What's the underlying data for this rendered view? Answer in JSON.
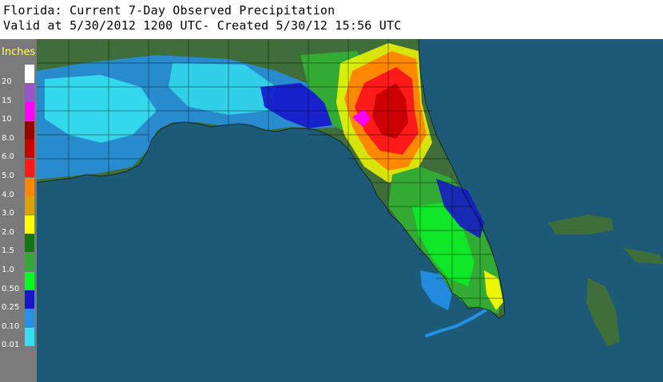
{
  "header": {
    "title": "Florida: Current 7-Day Observed Precipitation",
    "subtitle": "Valid at 5/30/2012 1200 UTC- Created 5/30/12 15:56 UTC"
  },
  "legend": {
    "title": "Inches",
    "items": [
      {
        "label": "20",
        "color": "#ffffff"
      },
      {
        "label": "15",
        "color": "#9955cc"
      },
      {
        "label": "10",
        "color": "#ff00ff"
      },
      {
        "label": "8.0",
        "color": "#990000"
      },
      {
        "label": "6.0",
        "color": "#cc0000"
      },
      {
        "label": "5.0",
        "color": "#ff1a1a"
      },
      {
        "label": "4.0",
        "color": "#ff8800"
      },
      {
        "label": "3.0",
        "color": "#d9a300"
      },
      {
        "label": "2.0",
        "color": "#ffff00"
      },
      {
        "label": "1.5",
        "color": "#117711"
      },
      {
        "label": "1.0",
        "color": "#33aa33"
      },
      {
        "label": "0.50",
        "color": "#00ff22"
      },
      {
        "label": "0.25",
        "color": "#1515cc"
      },
      {
        "label": "0.10",
        "color": "#2590e8"
      },
      {
        "label": "0.01",
        "color": "#35e0f0"
      }
    ]
  },
  "map": {
    "colors": {
      "water": "#1c5a78",
      "land_no_data": "#3f6e3a",
      "light": "#35e0f0",
      "blue": "#2590e8",
      "dark_blue": "#1515cc",
      "green": "#33aa33",
      "bright_green": "#00ff22",
      "dark_green": "#117711",
      "yellow": "#ffff00",
      "gold": "#d9a300",
      "orange": "#ff8800",
      "red": "#ff1a1a",
      "dark_red": "#cc0000",
      "magenta": "#ff00ff",
      "county_lines": "#000000"
    }
  }
}
